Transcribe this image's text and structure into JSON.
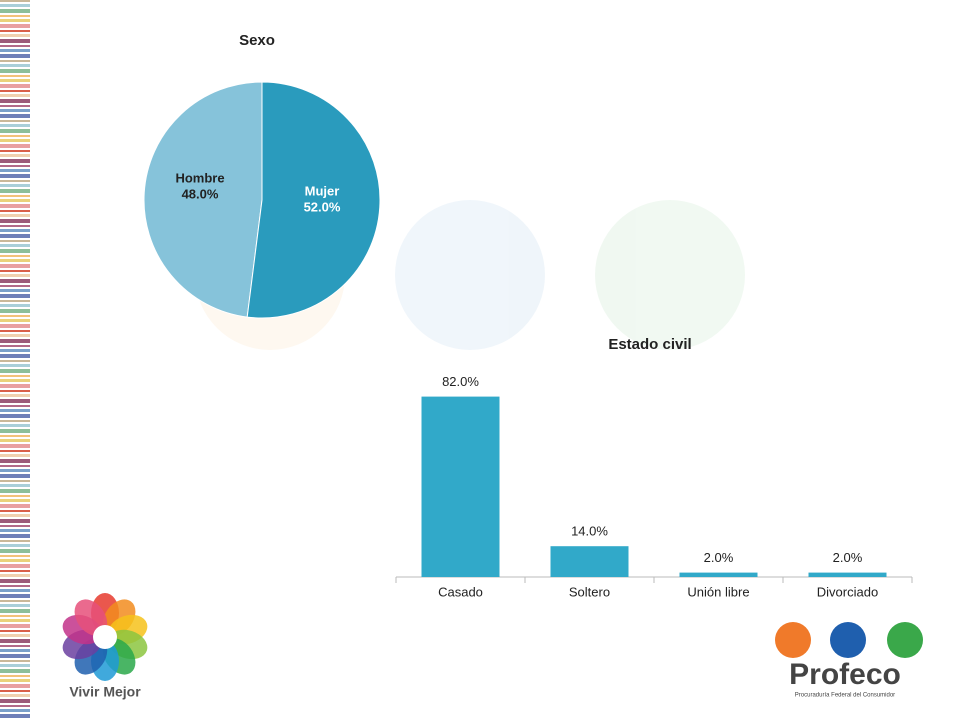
{
  "chart_data": [
    {
      "type": "pie",
      "title": "Sexo",
      "categories": [
        "Hombre",
        "Mujer"
      ],
      "values": [
        48,
        52
      ],
      "value_labels": [
        "48.0%",
        "52.0%"
      ],
      "colors": [
        "#86c3da",
        "#2a9bbd"
      ]
    },
    {
      "type": "bar",
      "title": "Estado civil",
      "categories": [
        "Casado",
        "Soltero",
        "Unión libre",
        "Divorciado"
      ],
      "values": [
        82,
        14,
        2,
        2
      ],
      "value_labels": [
        "82.0%",
        "14.0%",
        "2.0%",
        "2.0%"
      ],
      "color": "#31a9c9"
    }
  ],
  "logos": {
    "left": "Vivir Mejor",
    "right": "Profeco",
    "right_subtitle": "Procuraduría Federal del Consumidor"
  }
}
